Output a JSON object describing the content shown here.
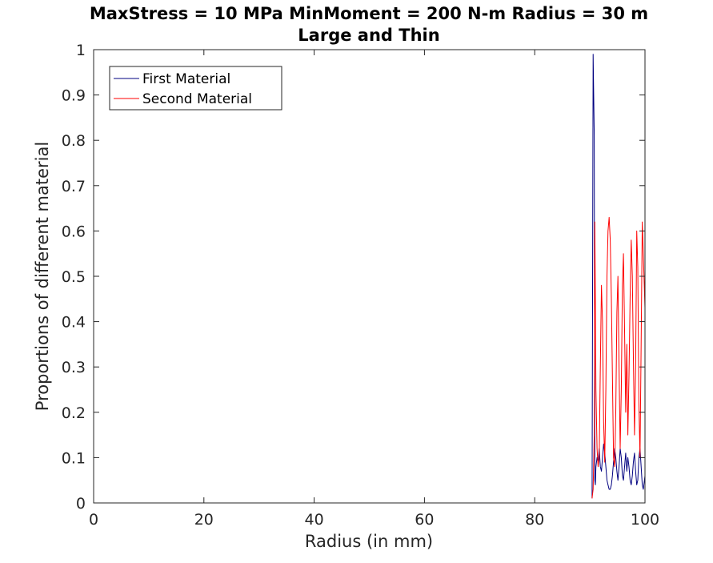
{
  "chart_data": {
    "type": "line",
    "title": "MaxStress = 10 MPa MinMoment = 200 N-m Radius = 30 m",
    "subtitle": "Large and Thin",
    "xlabel": "Radius (in mm)",
    "ylabel": "Proportions of different material",
    "xlim": [
      0,
      100
    ],
    "ylim": [
      0,
      1
    ],
    "xticks": [
      0,
      20,
      40,
      60,
      80,
      100
    ],
    "yticks": [
      0,
      0.1,
      0.2,
      0.3,
      0.4,
      0.5,
      0.6,
      0.7,
      0.8,
      0.9,
      1
    ],
    "grid": false,
    "legend_position": "top-left",
    "series": [
      {
        "name": "First Material",
        "color": "#000080",
        "x": [
          90.4,
          90.6,
          90.8,
          90.9,
          91.0,
          91.1,
          91.3,
          91.5,
          91.7,
          91.9,
          92.1,
          92.3,
          92.5,
          92.7,
          92.9,
          93.1,
          93.3,
          93.5,
          93.7,
          93.9,
          94.1,
          94.3,
          94.5,
          94.7,
          94.9,
          95.1,
          95.3,
          95.5,
          95.7,
          95.9,
          96.1,
          96.3,
          96.5,
          96.7,
          96.9,
          97.1,
          97.3,
          97.5,
          97.7,
          97.9,
          98.1,
          98.3,
          98.5,
          98.7,
          98.9,
          99.1,
          99.3,
          99.5,
          99.7,
          100.0
        ],
        "y": [
          0.01,
          0.99,
          0.81,
          0.05,
          0.04,
          0.08,
          0.1,
          0.09,
          0.12,
          0.08,
          0.07,
          0.1,
          0.13,
          0.11,
          0.08,
          0.05,
          0.04,
          0.03,
          0.03,
          0.04,
          0.06,
          0.09,
          0.12,
          0.1,
          0.07,
          0.05,
          0.08,
          0.12,
          0.1,
          0.06,
          0.05,
          0.08,
          0.11,
          0.07,
          0.1,
          0.08,
          0.05,
          0.04,
          0.06,
          0.09,
          0.11,
          0.07,
          0.04,
          0.05,
          0.1,
          0.12,
          0.08,
          0.04,
          0.03,
          0.06
        ]
      },
      {
        "name": "Second Material",
        "color": "#ff0000",
        "x": [
          90.4,
          90.6,
          90.8,
          90.9,
          91.0,
          91.1,
          91.3,
          91.5,
          91.7,
          91.9,
          92.1,
          92.3,
          92.5,
          92.7,
          92.9,
          93.1,
          93.3,
          93.5,
          93.7,
          93.9,
          94.1,
          94.3,
          94.5,
          94.7,
          94.9,
          95.1,
          95.3,
          95.5,
          95.7,
          95.9,
          96.1,
          96.3,
          96.5,
          96.7,
          96.9,
          97.1,
          97.3,
          97.5,
          97.7,
          97.9,
          98.1,
          98.3,
          98.5,
          98.7,
          98.9,
          99.1,
          99.3,
          99.5,
          99.7,
          100.0
        ],
        "y": [
          0.01,
          0.03,
          0.15,
          0.62,
          0.45,
          0.25,
          0.12,
          0.08,
          0.1,
          0.3,
          0.48,
          0.4,
          0.18,
          0.09,
          0.25,
          0.5,
          0.6,
          0.63,
          0.58,
          0.45,
          0.28,
          0.1,
          0.08,
          0.2,
          0.42,
          0.5,
          0.3,
          0.12,
          0.25,
          0.48,
          0.55,
          0.38,
          0.2,
          0.35,
          0.15,
          0.28,
          0.45,
          0.58,
          0.5,
          0.32,
          0.15,
          0.3,
          0.6,
          0.52,
          0.22,
          0.1,
          0.35,
          0.62,
          0.55,
          0.43
        ]
      }
    ]
  }
}
